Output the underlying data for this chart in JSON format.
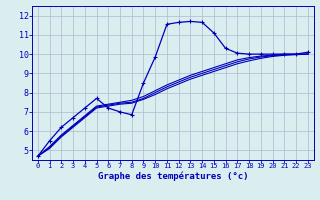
{
  "xlabel": "Graphe des températures (°c)",
  "background_color": "#daeef0",
  "grid_color": "#b0b8d0",
  "line_color": "#0000bb",
  "xlim": [
    -0.5,
    23.5
  ],
  "ylim": [
    4.5,
    12.5
  ],
  "xticks": [
    0,
    1,
    2,
    3,
    4,
    5,
    6,
    7,
    8,
    9,
    10,
    11,
    12,
    13,
    14,
    15,
    16,
    17,
    18,
    19,
    20,
    21,
    22,
    23
  ],
  "yticks": [
    5,
    6,
    7,
    8,
    9,
    10,
    11,
    12
  ],
  "series": [
    {
      "x": [
        0,
        1,
        2,
        3,
        4,
        5,
        6,
        7,
        8,
        9,
        10,
        11,
        12,
        13,
        14,
        15,
        16,
        17,
        18,
        19,
        20,
        21,
        22,
        23
      ],
      "y": [
        4.7,
        5.5,
        6.2,
        6.7,
        7.2,
        7.7,
        7.2,
        7.0,
        6.85,
        8.5,
        9.85,
        11.55,
        11.65,
        11.7,
        11.65,
        11.1,
        10.3,
        10.05,
        10.0,
        10.0,
        10.0,
        10.0,
        10.0,
        10.1
      ],
      "marker": "+"
    },
    {
      "x": [
        0,
        1,
        2,
        3,
        4,
        5,
        6,
        7,
        8,
        9,
        10,
        11,
        12,
        13,
        14,
        15,
        16,
        17,
        18,
        19,
        20,
        21,
        22,
        23
      ],
      "y": [
        4.7,
        5.2,
        5.8,
        6.3,
        6.8,
        7.3,
        7.4,
        7.5,
        7.6,
        7.8,
        8.1,
        8.4,
        8.65,
        8.9,
        9.1,
        9.3,
        9.5,
        9.7,
        9.82,
        9.9,
        9.95,
        10.0,
        10.0,
        10.0
      ],
      "marker": null
    },
    {
      "x": [
        0,
        1,
        2,
        3,
        4,
        5,
        6,
        7,
        8,
        9,
        10,
        11,
        12,
        13,
        14,
        15,
        16,
        17,
        18,
        19,
        20,
        21,
        22,
        23
      ],
      "y": [
        4.7,
        5.15,
        5.75,
        6.25,
        6.75,
        7.25,
        7.35,
        7.45,
        7.5,
        7.7,
        8.0,
        8.3,
        8.55,
        8.8,
        9.0,
        9.2,
        9.4,
        9.6,
        9.75,
        9.85,
        9.92,
        9.97,
        9.99,
        10.0
      ],
      "marker": null
    },
    {
      "x": [
        0,
        1,
        2,
        3,
        4,
        5,
        6,
        7,
        8,
        9,
        10,
        11,
        12,
        13,
        14,
        15,
        16,
        17,
        18,
        19,
        20,
        21,
        22,
        23
      ],
      "y": [
        4.7,
        5.1,
        5.7,
        6.2,
        6.7,
        7.2,
        7.3,
        7.4,
        7.45,
        7.65,
        7.9,
        8.2,
        8.45,
        8.7,
        8.9,
        9.1,
        9.3,
        9.5,
        9.65,
        9.78,
        9.88,
        9.94,
        9.97,
        10.0
      ],
      "marker": null
    }
  ]
}
